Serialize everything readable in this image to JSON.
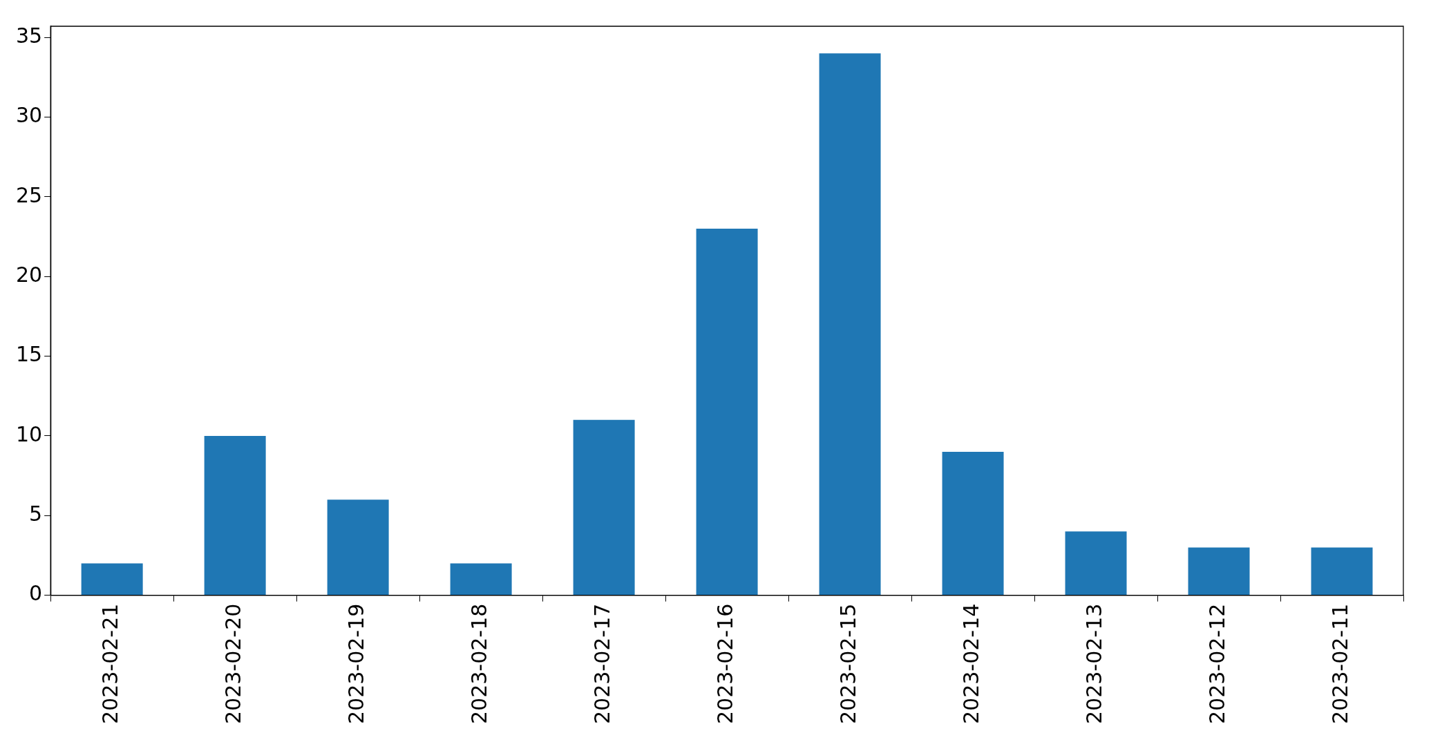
{
  "chart_data": {
    "type": "bar",
    "categories": [
      "2023-02-21",
      "2023-02-20",
      "2023-02-19",
      "2023-02-18",
      "2023-02-17",
      "2023-02-16",
      "2023-02-15",
      "2023-02-14",
      "2023-02-13",
      "2023-02-12",
      "2023-02-11"
    ],
    "values": [
      2,
      10,
      6,
      2,
      11,
      23,
      34,
      9,
      4,
      3,
      3
    ],
    "color": "#1f77b4",
    "ylim": [
      0,
      35.7
    ],
    "yticks": [
      0,
      5,
      10,
      15,
      20,
      25,
      30,
      35
    ]
  }
}
